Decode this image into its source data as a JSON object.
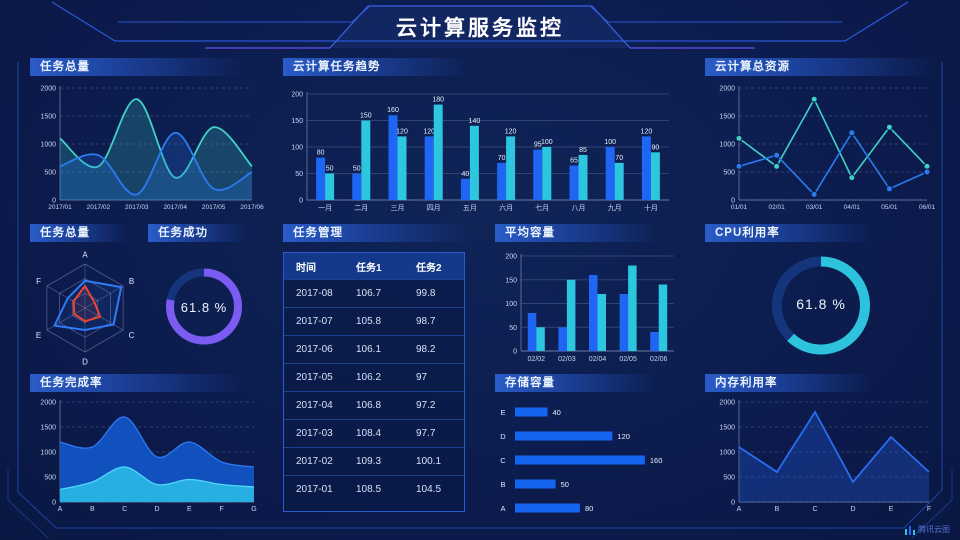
{
  "header": {
    "title": "云计算服务监控"
  },
  "brand": {
    "label": "腾讯云图"
  },
  "colors": {
    "background": "#0c1c4e",
    "panel_header": "#1b3f96",
    "blue": "#1f66f5",
    "cyan": "#2cc7de",
    "teal": "#3ed2c5",
    "line_blue": "#2a7cf0",
    "purple": "#7b5bf2",
    "red": "#f0432f",
    "axis_text": "#c9d6f2",
    "table_header_bg": "#15398a"
  },
  "panels": {
    "task_total": "任务总量",
    "cloud_task_trend": "云计算任务趋势",
    "cloud_total_resource": "云计算总资源",
    "task_total_radar": "任务总量",
    "task_success": "任务成功",
    "task_manage": "任务管理",
    "avg_capacity": "平均容量",
    "cpu_usage": "CPU利用率",
    "task_completion": "任务完成率",
    "storage_capacity": "存储容量",
    "memory_usage": "内存利用率"
  },
  "chart_data": [
    {
      "id": "task_total_trend",
      "type": "area",
      "smooth": true,
      "x": [
        "2017/01",
        "2017/02",
        "2017/03",
        "2017/04",
        "2017/05",
        "2017/06"
      ],
      "ylim": [
        0,
        2000
      ],
      "yticks": [
        0,
        500,
        1000,
        1500,
        2000
      ],
      "grid": "dashed",
      "series": [
        {
          "name": "series-teal",
          "color": "#3ed2c5",
          "values": [
            1100,
            600,
            1800,
            400,
            1300,
            600
          ]
        },
        {
          "name": "series-blue",
          "color": "#2a7cf0",
          "values": [
            600,
            800,
            100,
            1200,
            200,
            500
          ]
        }
      ]
    },
    {
      "id": "cloud_task_trend",
      "type": "bar",
      "value_labels": true,
      "categories": [
        "一月",
        "二月",
        "三月",
        "四月",
        "五月",
        "六月",
        "七月",
        "八月",
        "九月",
        "十月"
      ],
      "ylim": [
        0,
        200
      ],
      "yticks": [
        0,
        50,
        100,
        150,
        200
      ],
      "grid": "solid",
      "series": [
        {
          "name": "任务1",
          "color": "#1f66f5",
          "values": [
            80,
            50,
            160,
            120,
            40,
            70,
            95,
            65,
            100,
            120
          ]
        },
        {
          "name": "任务2",
          "color": "#2cc7de",
          "values": [
            50,
            150,
            120,
            180,
            140,
            120,
            100,
            85,
            70,
            90
          ]
        }
      ]
    },
    {
      "id": "cloud_total_resource",
      "type": "line",
      "markers": true,
      "x": [
        "01/01",
        "02/01",
        "03/01",
        "04/01",
        "05/01",
        "06/01"
      ],
      "ylim": [
        0,
        2000
      ],
      "yticks": [
        0,
        500,
        1000,
        1500,
        2000
      ],
      "grid": "dashed",
      "series": [
        {
          "name": "series-teal",
          "color": "#3ed2c5",
          "values": [
            1100,
            600,
            1800,
            400,
            1300,
            600
          ]
        },
        {
          "name": "series-blue",
          "color": "#2a7cf0",
          "values": [
            600,
            800,
            100,
            1200,
            200,
            500
          ]
        }
      ]
    },
    {
      "id": "task_total_radar",
      "type": "radar",
      "axes": [
        "A",
        "B",
        "C",
        "D",
        "E",
        "F"
      ],
      "max": 100,
      "series": [
        {
          "name": "radar-blue",
          "color": "#2f7bf5",
          "values": [
            62,
            95,
            75,
            50,
            80,
            45
          ]
        },
        {
          "name": "radar-red",
          "color": "#f0432f",
          "values": [
            50,
            25,
            40,
            30,
            28,
            30
          ]
        }
      ]
    },
    {
      "id": "task_success_gauge",
      "type": "gauge",
      "value": 61.8,
      "display": "61.8 %",
      "arc_percent": 78,
      "color": "#7b5bf2",
      "track": "#14357c"
    },
    {
      "id": "task_table",
      "type": "table",
      "headers": [
        "时间",
        "任务1",
        "任务2"
      ],
      "rows": [
        [
          "2017-08",
          "106.7",
          "99.8"
        ],
        [
          "2017-07",
          "105.8",
          "98.7"
        ],
        [
          "2017-06",
          "106.1",
          "98.2"
        ],
        [
          "2017-05",
          "106.2",
          "97"
        ],
        [
          "2017-04",
          "106.8",
          "97.2"
        ],
        [
          "2017-03",
          "108.4",
          "97.7"
        ],
        [
          "2017-02",
          "109.3",
          "100.1"
        ],
        [
          "2017-01",
          "108.5",
          "104.5"
        ]
      ]
    },
    {
      "id": "avg_capacity",
      "type": "bar",
      "value_labels": false,
      "categories": [
        "02/02",
        "02/03",
        "02/04",
        "02/05",
        "02/06"
      ],
      "ylim": [
        0,
        200
      ],
      "yticks": [
        0,
        50,
        100,
        150,
        200
      ],
      "grid": "solid",
      "series": [
        {
          "name": "series-blue",
          "color": "#1f66f5",
          "values": [
            80,
            50,
            160,
            120,
            40
          ]
        },
        {
          "name": "series-cyan",
          "color": "#2cc7de",
          "values": [
            50,
            150,
            120,
            180,
            140
          ]
        }
      ]
    },
    {
      "id": "cpu_gauge",
      "type": "gauge",
      "value": 61.8,
      "display": "61.8 %",
      "arc_percent": 62,
      "color": "#2ec3dd",
      "track": "#14357c"
    },
    {
      "id": "task_completion",
      "type": "stacked_area",
      "x": [
        "A",
        "B",
        "C",
        "D",
        "E",
        "F",
        "G"
      ],
      "ylim": [
        0,
        2000
      ],
      "yticks": [
        0,
        500,
        1000,
        1500,
        2000
      ],
      "grid": "dashed",
      "layers": [
        {
          "name": "total",
          "color": "#1256c8",
          "edge": "#2e7af2",
          "values": [
            1200,
            1100,
            1700,
            900,
            1200,
            800,
            700
          ]
        },
        {
          "name": "bottom",
          "color": "#29b7e6",
          "edge": "#4fd8f8",
          "values": [
            250,
            400,
            700,
            350,
            450,
            350,
            300
          ]
        }
      ]
    },
    {
      "id": "storage_capacity",
      "type": "hbar",
      "categories": [
        "E",
        "D",
        "C",
        "B",
        "A"
      ],
      "values": [
        40,
        120,
        160,
        50,
        80
      ],
      "xmax": 170,
      "color": "#1565f0"
    },
    {
      "id": "memory_usage",
      "type": "line_area",
      "x": [
        "A",
        "B",
        "C",
        "D",
        "E",
        "F"
      ],
      "ylim": [
        0,
        2000
      ],
      "yticks": [
        0,
        500,
        1000,
        1500,
        2000
      ],
      "grid": "dashed",
      "color": "#2a6df0",
      "fill": "#1f5ad0",
      "values": [
        1100,
        600,
        1800,
        400,
        1300,
        600
      ]
    }
  ]
}
